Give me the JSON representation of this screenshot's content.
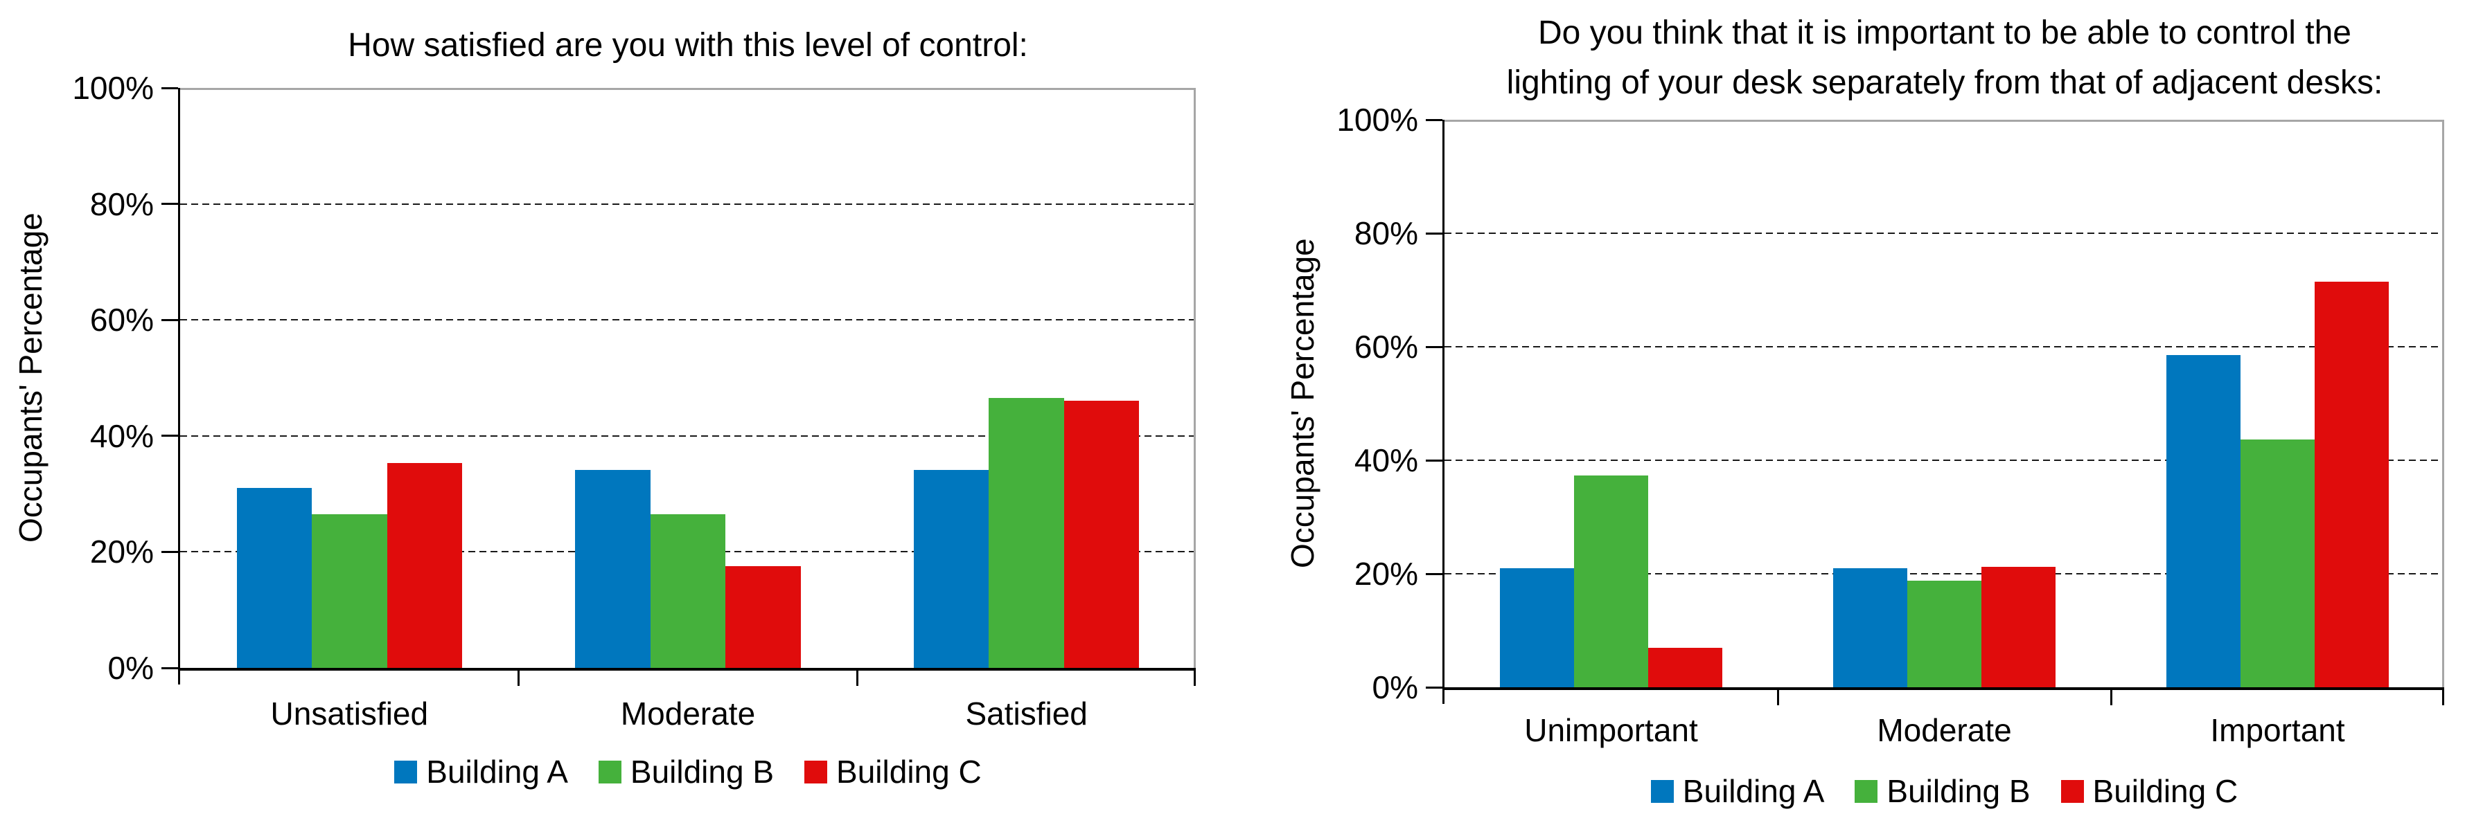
{
  "page": {
    "background": "#ffffff"
  },
  "style": {
    "axis_color": "#000000",
    "plot_border_color": "#a6a6a6",
    "gridline_color": "#1a1a1a",
    "text_color": "#000000"
  },
  "chart_data": [
    {
      "type": "bar",
      "title": "How satisfied are you with this level of control:",
      "title_display": "How satisfied are you with this level of control:",
      "ylabel": "Occupants' Percentage",
      "xlabel": "",
      "categories": [
        "Unsatisfied",
        "Moderate",
        "Satisfied"
      ],
      "series": [
        {
          "name": "Building A",
          "color": "#0077BE",
          "values": [
            31,
            34.1,
            34.1
          ]
        },
        {
          "name": "Building B",
          "color": "#45B13C",
          "values": [
            26.5,
            26.5,
            46.6
          ]
        },
        {
          "name": "Building C",
          "color": "#E00C0C",
          "values": [
            35.3,
            17.6,
            46.1
          ]
        }
      ],
      "ylim": [
        0,
        100
      ],
      "yticks": [
        "0%",
        "20%",
        "40%",
        "60%",
        "80%",
        "100%"
      ],
      "grid": true,
      "legend_position": "bottom"
    },
    {
      "type": "bar",
      "title": "Do you think that it is important to be able to control the lighting of your desk separately from that of adjacent desks:",
      "title_display": "Do you think that it is important to be able to control the\nlighting of your desk separately from that of adjacent desks:",
      "ylabel": "Occupants' Percentage",
      "xlabel": "",
      "categories": [
        "Unimportant",
        "Moderate",
        "Important"
      ],
      "series": [
        {
          "name": "Building A",
          "color": "#0077BE",
          "values": [
            21,
            21,
            58.5
          ]
        },
        {
          "name": "Building B",
          "color": "#45B13C",
          "values": [
            37.3,
            18.8,
            43.6
          ]
        },
        {
          "name": "Building C",
          "color": "#E00C0C",
          "values": [
            7,
            21.2,
            71.5
          ]
        }
      ],
      "ylim": [
        0,
        100
      ],
      "yticks": [
        "0%",
        "20%",
        "40%",
        "60%",
        "80%",
        "100%"
      ],
      "grid": true,
      "legend_position": "bottom"
    }
  ]
}
